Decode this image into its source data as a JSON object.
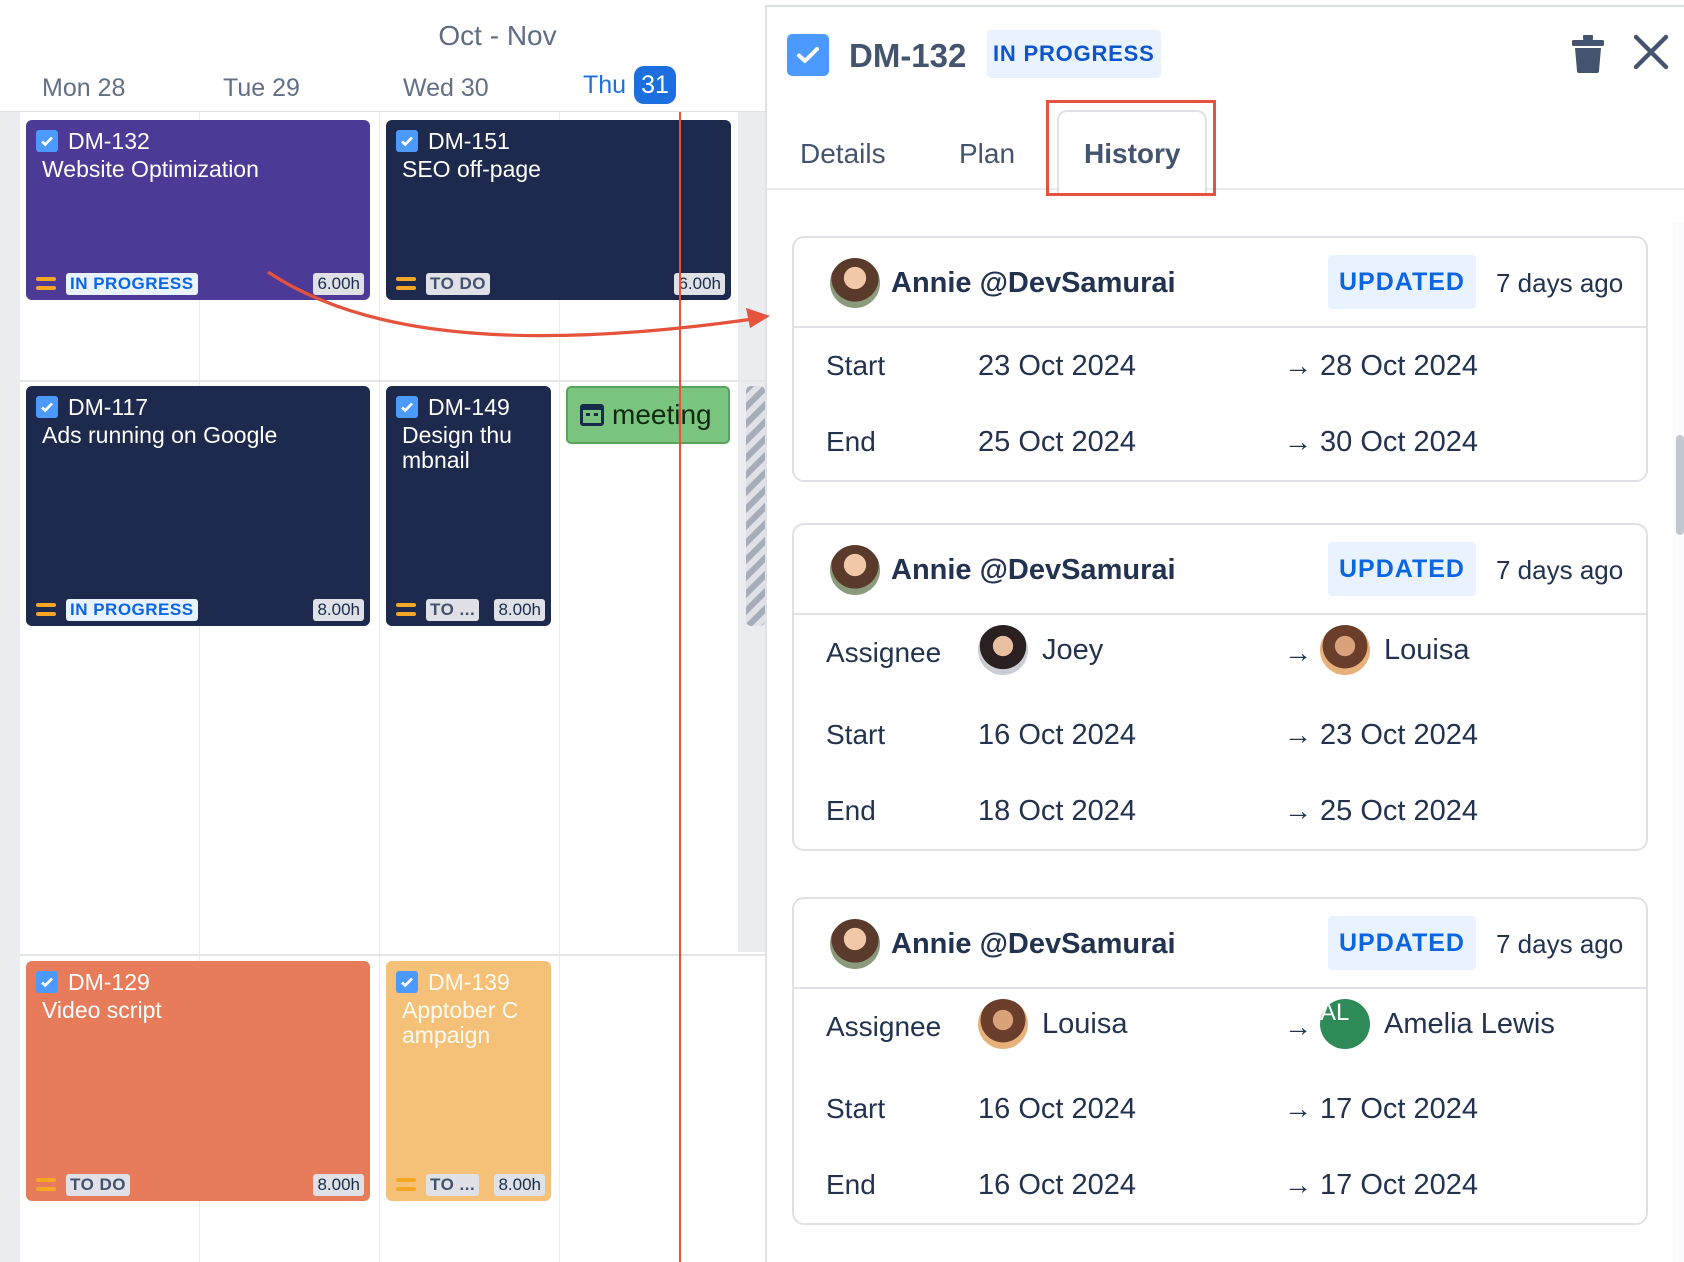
{
  "calendar": {
    "range_label": "Oct - Nov",
    "days": [
      {
        "label": "Mon 28"
      },
      {
        "label": "Tue 29"
      },
      {
        "label": "Wed 30"
      },
      {
        "label": "Thu",
        "number": "31"
      }
    ],
    "cards": [
      {
        "key": "DM-132",
        "title": "Website Optimization",
        "status": "IN PROGRESS",
        "hours": "6.00h",
        "color": "#4c3a96"
      },
      {
        "key": "DM-151",
        "title": "SEO off-page",
        "status": "TO DO",
        "hours": "6.00h",
        "color": "#1e2a4d"
      },
      {
        "key": "DM-117",
        "title": "Ads running on Google",
        "status": "IN PROGRESS",
        "hours": "8.00h",
        "color": "#1e2a4d"
      },
      {
        "key": "DM-149",
        "title": "Design thu mbnail",
        "status": "TO ...",
        "hours": "8.00h",
        "color": "#1e2a4d"
      },
      {
        "key": "DM-129",
        "title": "Video script",
        "status": "TO DO",
        "hours": "8.00h",
        "color": "#e87c5a"
      },
      {
        "key": "DM-139",
        "title": "Apptober C ampaign",
        "status": "TO ...",
        "hours": "8.00h",
        "color": "#f5c078"
      }
    ],
    "meeting_label": "meeting",
    "accent": "#e5533d"
  },
  "panel": {
    "issue_key": "DM-132",
    "status": "IN PROGRESS",
    "tabs": [
      "Details",
      "Plan",
      "History"
    ],
    "active_tab": "History",
    "history": [
      {
        "author": "Annie @DevSamurai",
        "action": "UPDATED",
        "time": "7 days ago",
        "changes": [
          {
            "field": "Start",
            "from": "23 Oct 2024",
            "to": "28 Oct 2024"
          },
          {
            "field": "End",
            "from": "25 Oct 2024",
            "to": "30 Oct 2024"
          }
        ]
      },
      {
        "author": "Annie @DevSamurai",
        "action": "UPDATED",
        "time": "7 days ago",
        "changes": [
          {
            "field": "Assignee",
            "from": "Joey",
            "to": "Louisa"
          },
          {
            "field": "Start",
            "from": "16 Oct 2024",
            "to": "23 Oct 2024"
          },
          {
            "field": "End",
            "from": "18 Oct 2024",
            "to": "25 Oct 2024"
          }
        ]
      },
      {
        "author": "Annie @DevSamurai",
        "action": "UPDATED",
        "time": "7 days ago",
        "changes": [
          {
            "field": "Assignee",
            "from": "Louisa",
            "to": "Amelia Lewis",
            "to_initials": "AL"
          },
          {
            "field": "Start",
            "from": "16 Oct 2024",
            "to": "17 Oct 2024"
          },
          {
            "field": "End",
            "from": "16 Oct 2024",
            "to": "17 Oct 2024"
          }
        ]
      }
    ],
    "arrow_glyph": "→",
    "colors": {
      "status_blue": "#0c66e4",
      "badge_bg": "#e9f2ff",
      "highlight": "#e5533d"
    }
  }
}
